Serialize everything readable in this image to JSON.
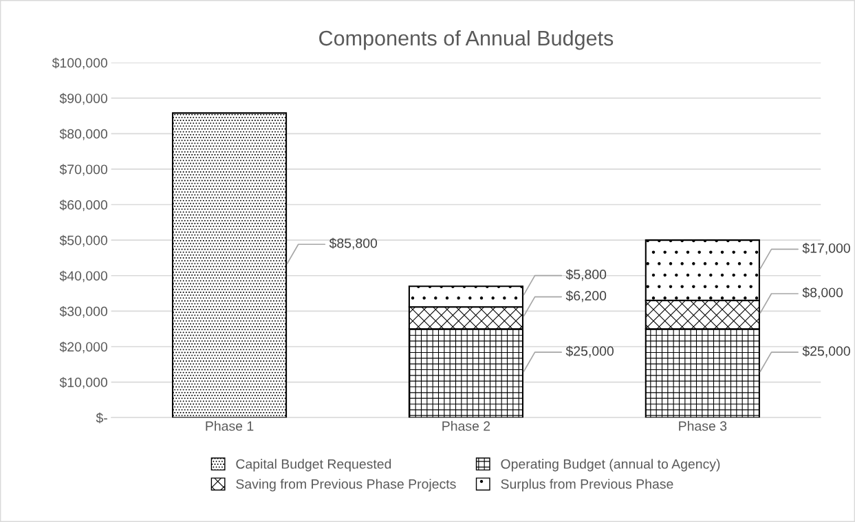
{
  "chart_data": {
    "type": "bar",
    "title": "Components of Annual Budgets",
    "stacked": true,
    "categories": [
      "Phase 1",
      "Phase 2",
      "Phase 3"
    ],
    "series": [
      {
        "name": "Capital Budget Requested",
        "color": "#000000",
        "values": [
          85800,
          null,
          null
        ],
        "value_labels": [
          "$85,800",
          null,
          null
        ]
      },
      {
        "name": "Operating Budget (annual to Agency)",
        "color": "#000000",
        "values": [
          null,
          25000,
          25000
        ],
        "value_labels": [
          null,
          "$25,000",
          "$25,000"
        ]
      },
      {
        "name": "Saving from Previous Phase Projects",
        "color": "#000000",
        "values": [
          null,
          6200,
          8000
        ],
        "value_labels": [
          null,
          "$6,200",
          "$8,000"
        ]
      },
      {
        "name": "Surplus from Previous Phase",
        "color": "#000000",
        "values": [
          null,
          5800,
          17000
        ],
        "value_labels": [
          null,
          "$5,800",
          "$17,000"
        ]
      }
    ],
    "ylim": [
      0,
      100000
    ],
    "yticks": [
      {
        "value": 0,
        "label": "$-"
      },
      {
        "value": 10000,
        "label": "$10,000"
      },
      {
        "value": 20000,
        "label": "$20,000"
      },
      {
        "value": 30000,
        "label": "$30,000"
      },
      {
        "value": 40000,
        "label": "$40,000"
      },
      {
        "value": 50000,
        "label": "$50,000"
      },
      {
        "value": 60000,
        "label": "$60,000"
      },
      {
        "value": 70000,
        "label": "$70,000"
      },
      {
        "value": 80000,
        "label": "$80,000"
      },
      {
        "value": 90000,
        "label": "$90,000"
      },
      {
        "value": 100000,
        "label": "$100,000"
      }
    ],
    "grid": "y",
    "legend": "bottom"
  }
}
